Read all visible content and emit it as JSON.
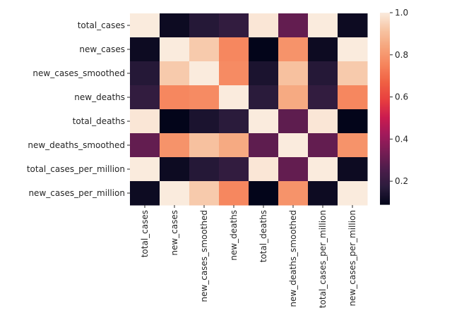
{
  "chart_data": {
    "type": "heatmap",
    "title": "",
    "xlabel": "",
    "ylabel": "",
    "rows": [
      "total_cases",
      "new_cases",
      "new_cases_smoothed",
      "new_deaths",
      "total_deaths",
      "new_deaths_smoothed",
      "total_cases_per_million",
      "new_cases_per_million"
    ],
    "columns": [
      "total_cases",
      "new_cases",
      "new_cases_smoothed",
      "new_deaths",
      "total_deaths",
      "new_deaths_smoothed",
      "total_cases_per_million",
      "new_cases_per_million"
    ],
    "values": [
      [
        1.0,
        0.11,
        0.16,
        0.19,
        0.99,
        0.3,
        1.0,
        0.11
      ],
      [
        0.11,
        1.0,
        0.93,
        0.76,
        0.09,
        0.79,
        0.11,
        1.0
      ],
      [
        0.16,
        0.93,
        1.0,
        0.77,
        0.14,
        0.91,
        0.16,
        0.93
      ],
      [
        0.19,
        0.76,
        0.77,
        1.0,
        0.17,
        0.85,
        0.19,
        0.76
      ],
      [
        0.99,
        0.09,
        0.14,
        0.17,
        1.0,
        0.29,
        0.99,
        0.09
      ],
      [
        0.3,
        0.79,
        0.91,
        0.85,
        0.29,
        1.0,
        0.3,
        0.79
      ],
      [
        1.0,
        0.11,
        0.16,
        0.19,
        0.99,
        0.3,
        1.0,
        0.11
      ],
      [
        0.11,
        1.0,
        0.93,
        0.76,
        0.09,
        0.79,
        0.11,
        1.0
      ]
    ],
    "colorbar": {
      "min": 0.09,
      "max": 1.0,
      "ticks": [
        0.2,
        0.4,
        0.6,
        0.8,
        1.0
      ],
      "tick_labels": [
        "0.2",
        "0.4",
        "0.6",
        "0.8",
        "1.0"
      ]
    },
    "colormap": [
      "#03051a",
      "#2b1c3c",
      "#4c1d4b",
      "#771d54",
      "#a11a5b",
      "#cb1b4f",
      "#e83f3f",
      "#f06043",
      "#f6845c",
      "#f6a47b",
      "#f7c4a3",
      "#faebdd"
    ]
  }
}
